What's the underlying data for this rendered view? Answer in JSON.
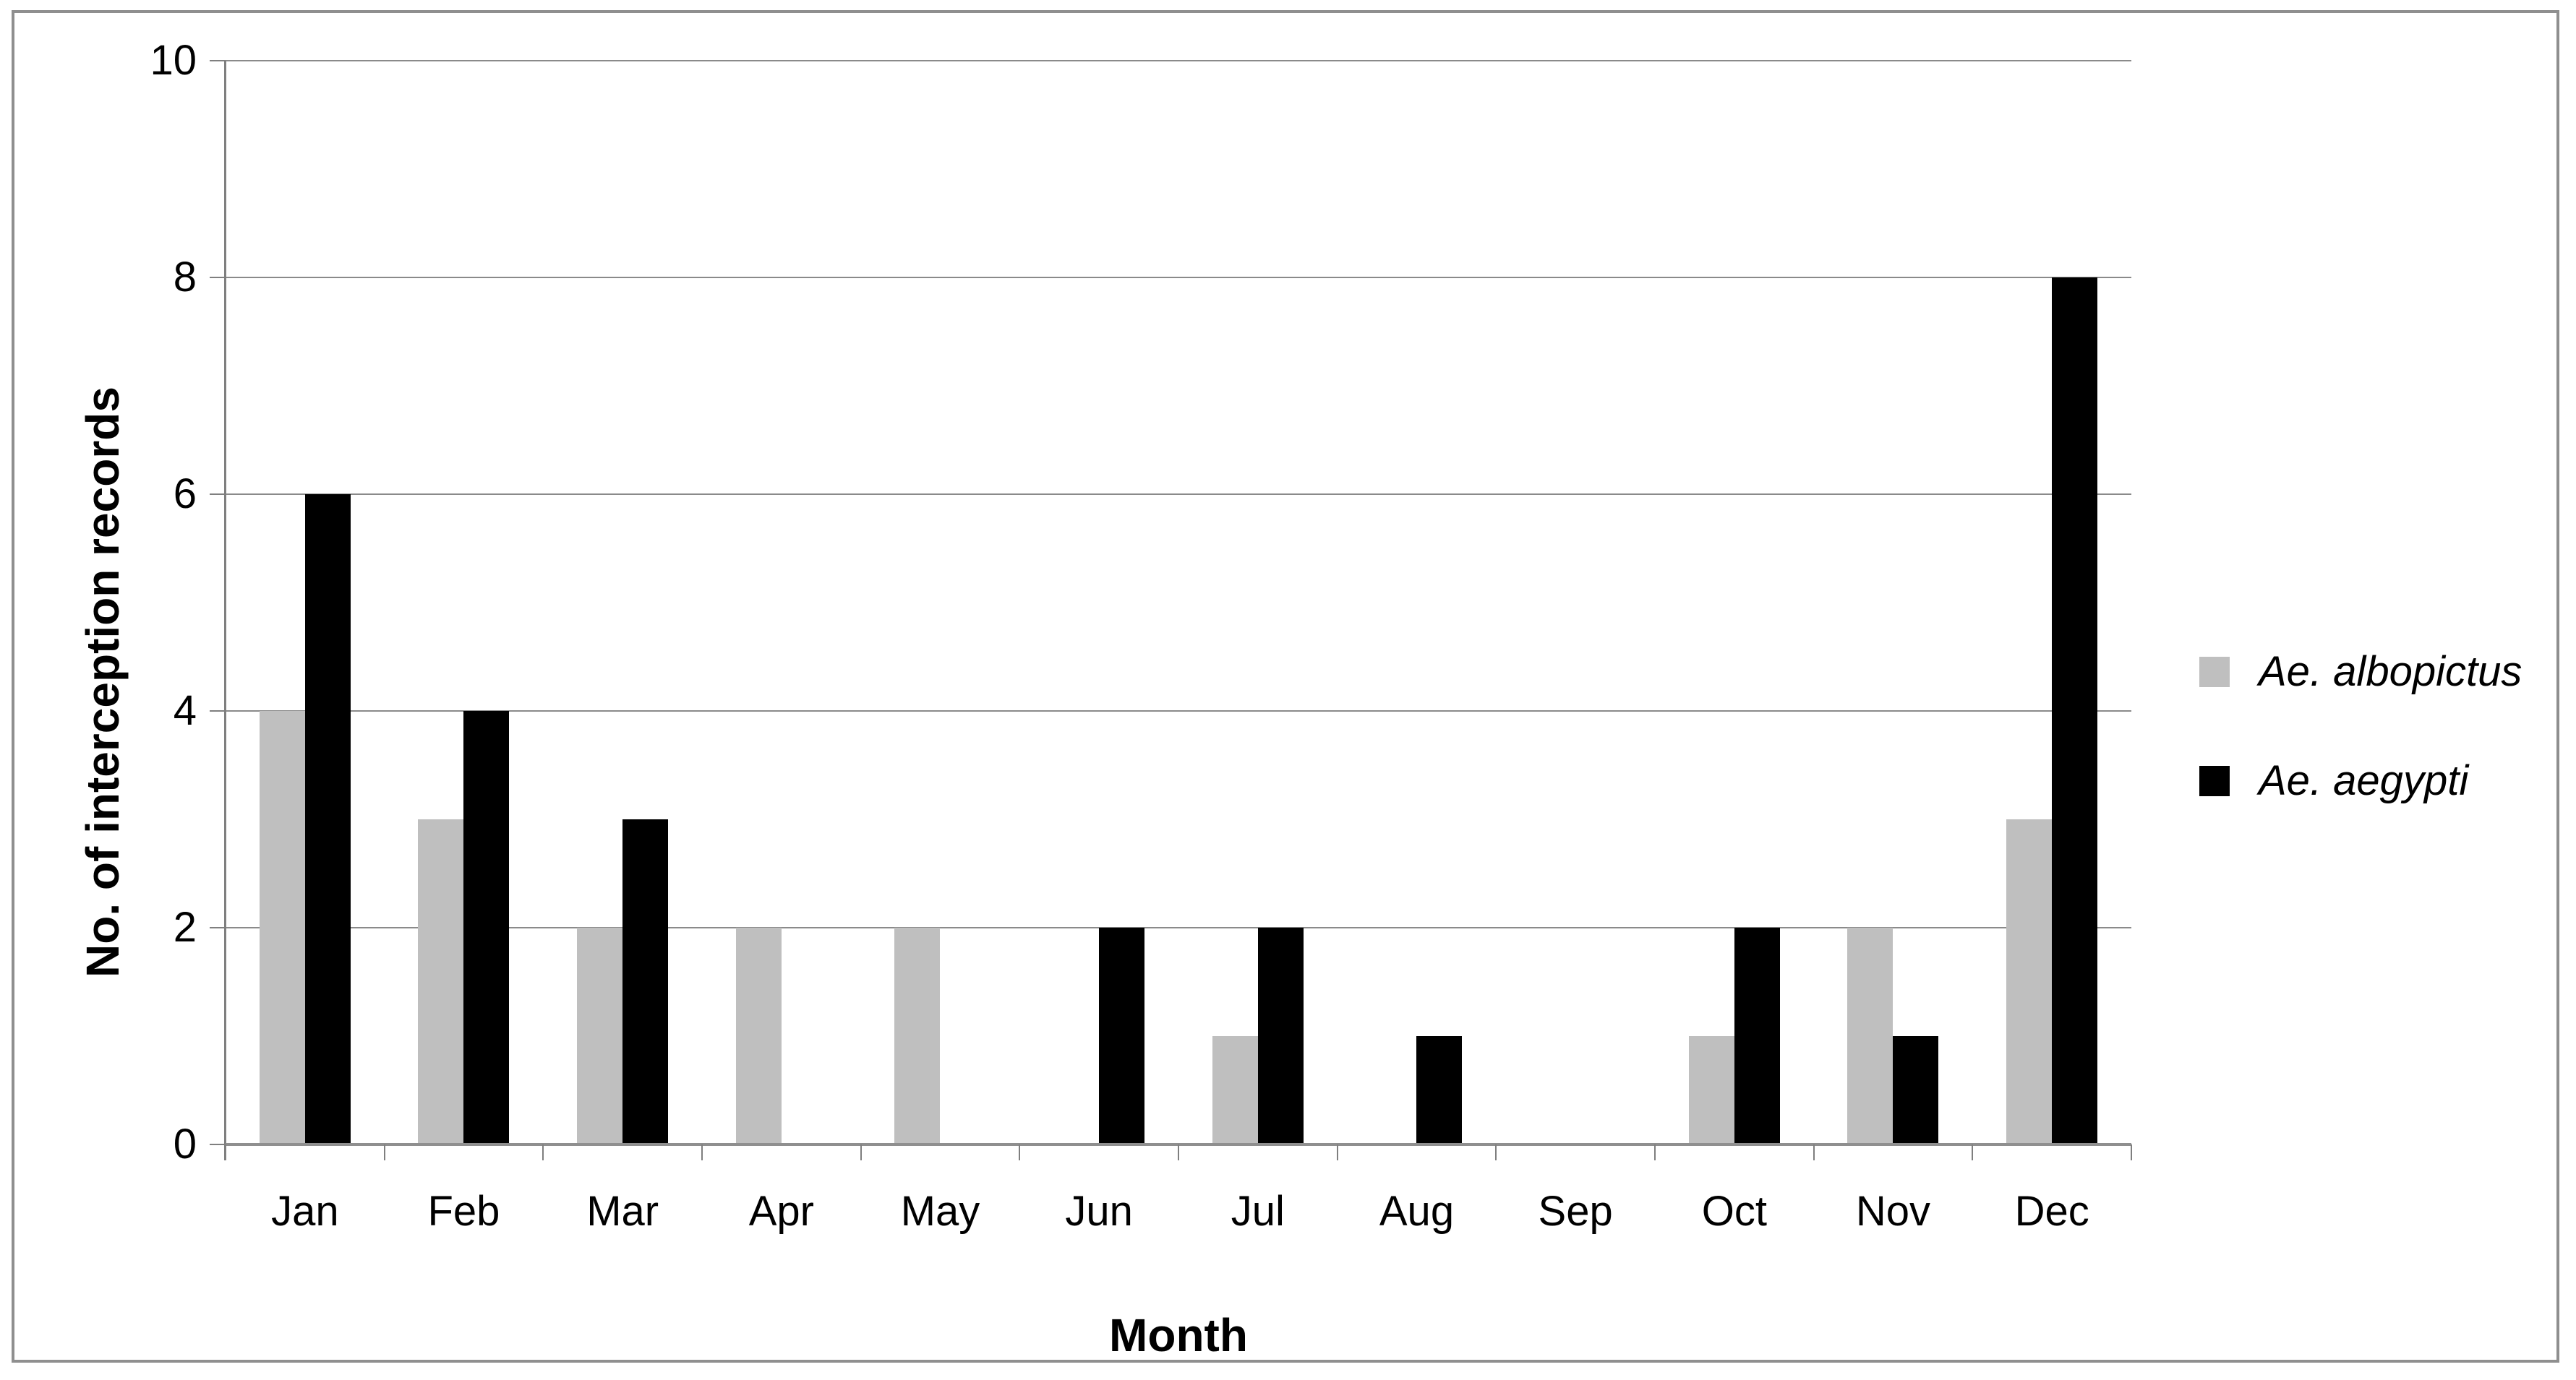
{
  "figure": {
    "background_color": "#ffffff",
    "frame_color": "#8f8f8f"
  },
  "chart_data": {
    "type": "bar",
    "title": "",
    "xlabel": "Month",
    "ylabel": "No. of interception records",
    "categories": [
      "Jan",
      "Feb",
      "Mar",
      "Apr",
      "May",
      "Jun",
      "Jul",
      "Aug",
      "Sep",
      "Oct",
      "Nov",
      "Dec"
    ],
    "series": [
      {
        "name": "Ae. albopictus",
        "color": "#bfbfbf",
        "values": [
          4,
          3,
          2,
          2,
          2,
          0,
          1,
          0,
          0,
          1,
          2,
          3
        ]
      },
      {
        "name": "Ae. aegypti",
        "color": "#000000",
        "values": [
          6,
          4,
          3,
          0,
          0,
          2,
          2,
          1,
          0,
          2,
          1,
          8
        ]
      }
    ],
    "ylim": [
      0,
      10
    ],
    "yticks": [
      0,
      2,
      4,
      6,
      8,
      10
    ],
    "grid": "horizontal",
    "gridline_color": "#8a8a8a",
    "axis_color": "#7f7f7f",
    "legend_position": "right",
    "legend_text_style": "italic"
  }
}
